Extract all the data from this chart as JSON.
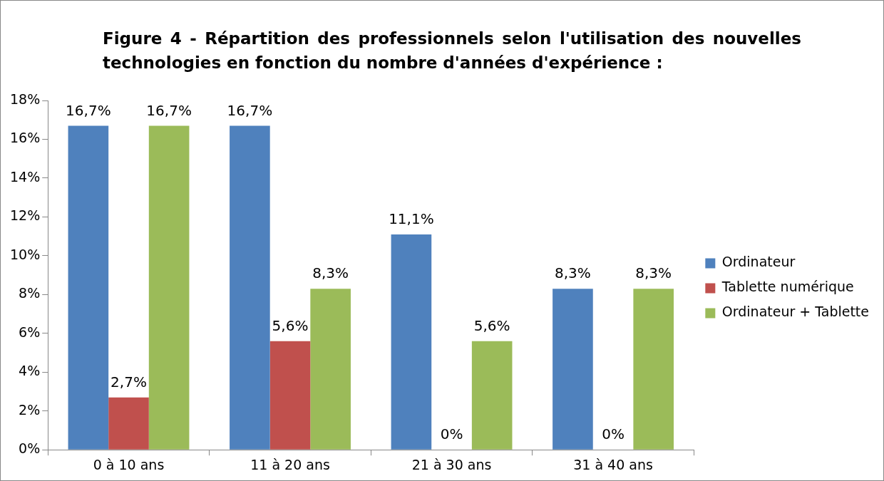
{
  "chart_data": {
    "type": "bar",
    "title": "Figure 4 - Répartition des professionnels selon l'utilisation des nouvelles technologies en fonction du nombre d'années d'expérience :",
    "categories": [
      "0 à 10 ans",
      "11 à 20 ans",
      "21 à 30 ans",
      "31 à 40 ans"
    ],
    "series": [
      {
        "name": "Ordinateur",
        "color": "#4f81bd",
        "values": [
          16.7,
          16.7,
          11.1,
          8.3
        ],
        "value_labels": [
          "16,7%",
          "16,7%",
          "11,1%",
          "8,3%"
        ]
      },
      {
        "name": "Tablette numérique",
        "color": "#c0504d",
        "values": [
          2.7,
          5.6,
          0,
          0
        ],
        "value_labels": [
          "2,7%",
          "5,6%",
          "0%",
          "0%"
        ]
      },
      {
        "name": "Ordinateur + Tablette",
        "color": "#9bbb59",
        "values": [
          16.7,
          8.3,
          5.6,
          8.3
        ],
        "value_labels": [
          "16,7%",
          "8,3%",
          "5,6%",
          "8,3%"
        ]
      }
    ],
    "ylim": [
      0,
      18
    ],
    "yticks": [
      {
        "value": 0,
        "label": "0%"
      },
      {
        "value": 2,
        "label": "2%"
      },
      {
        "value": 4,
        "label": "4%"
      },
      {
        "value": 6,
        "label": "6%"
      },
      {
        "value": 8,
        "label": "8%"
      },
      {
        "value": 10,
        "label": "10%"
      },
      {
        "value": 12,
        "label": "12%"
      },
      {
        "value": 14,
        "label": "14%"
      },
      {
        "value": 16,
        "label": "16%"
      },
      {
        "value": 18,
        "label": "18%"
      }
    ],
    "grid": false,
    "legend": "right"
  }
}
